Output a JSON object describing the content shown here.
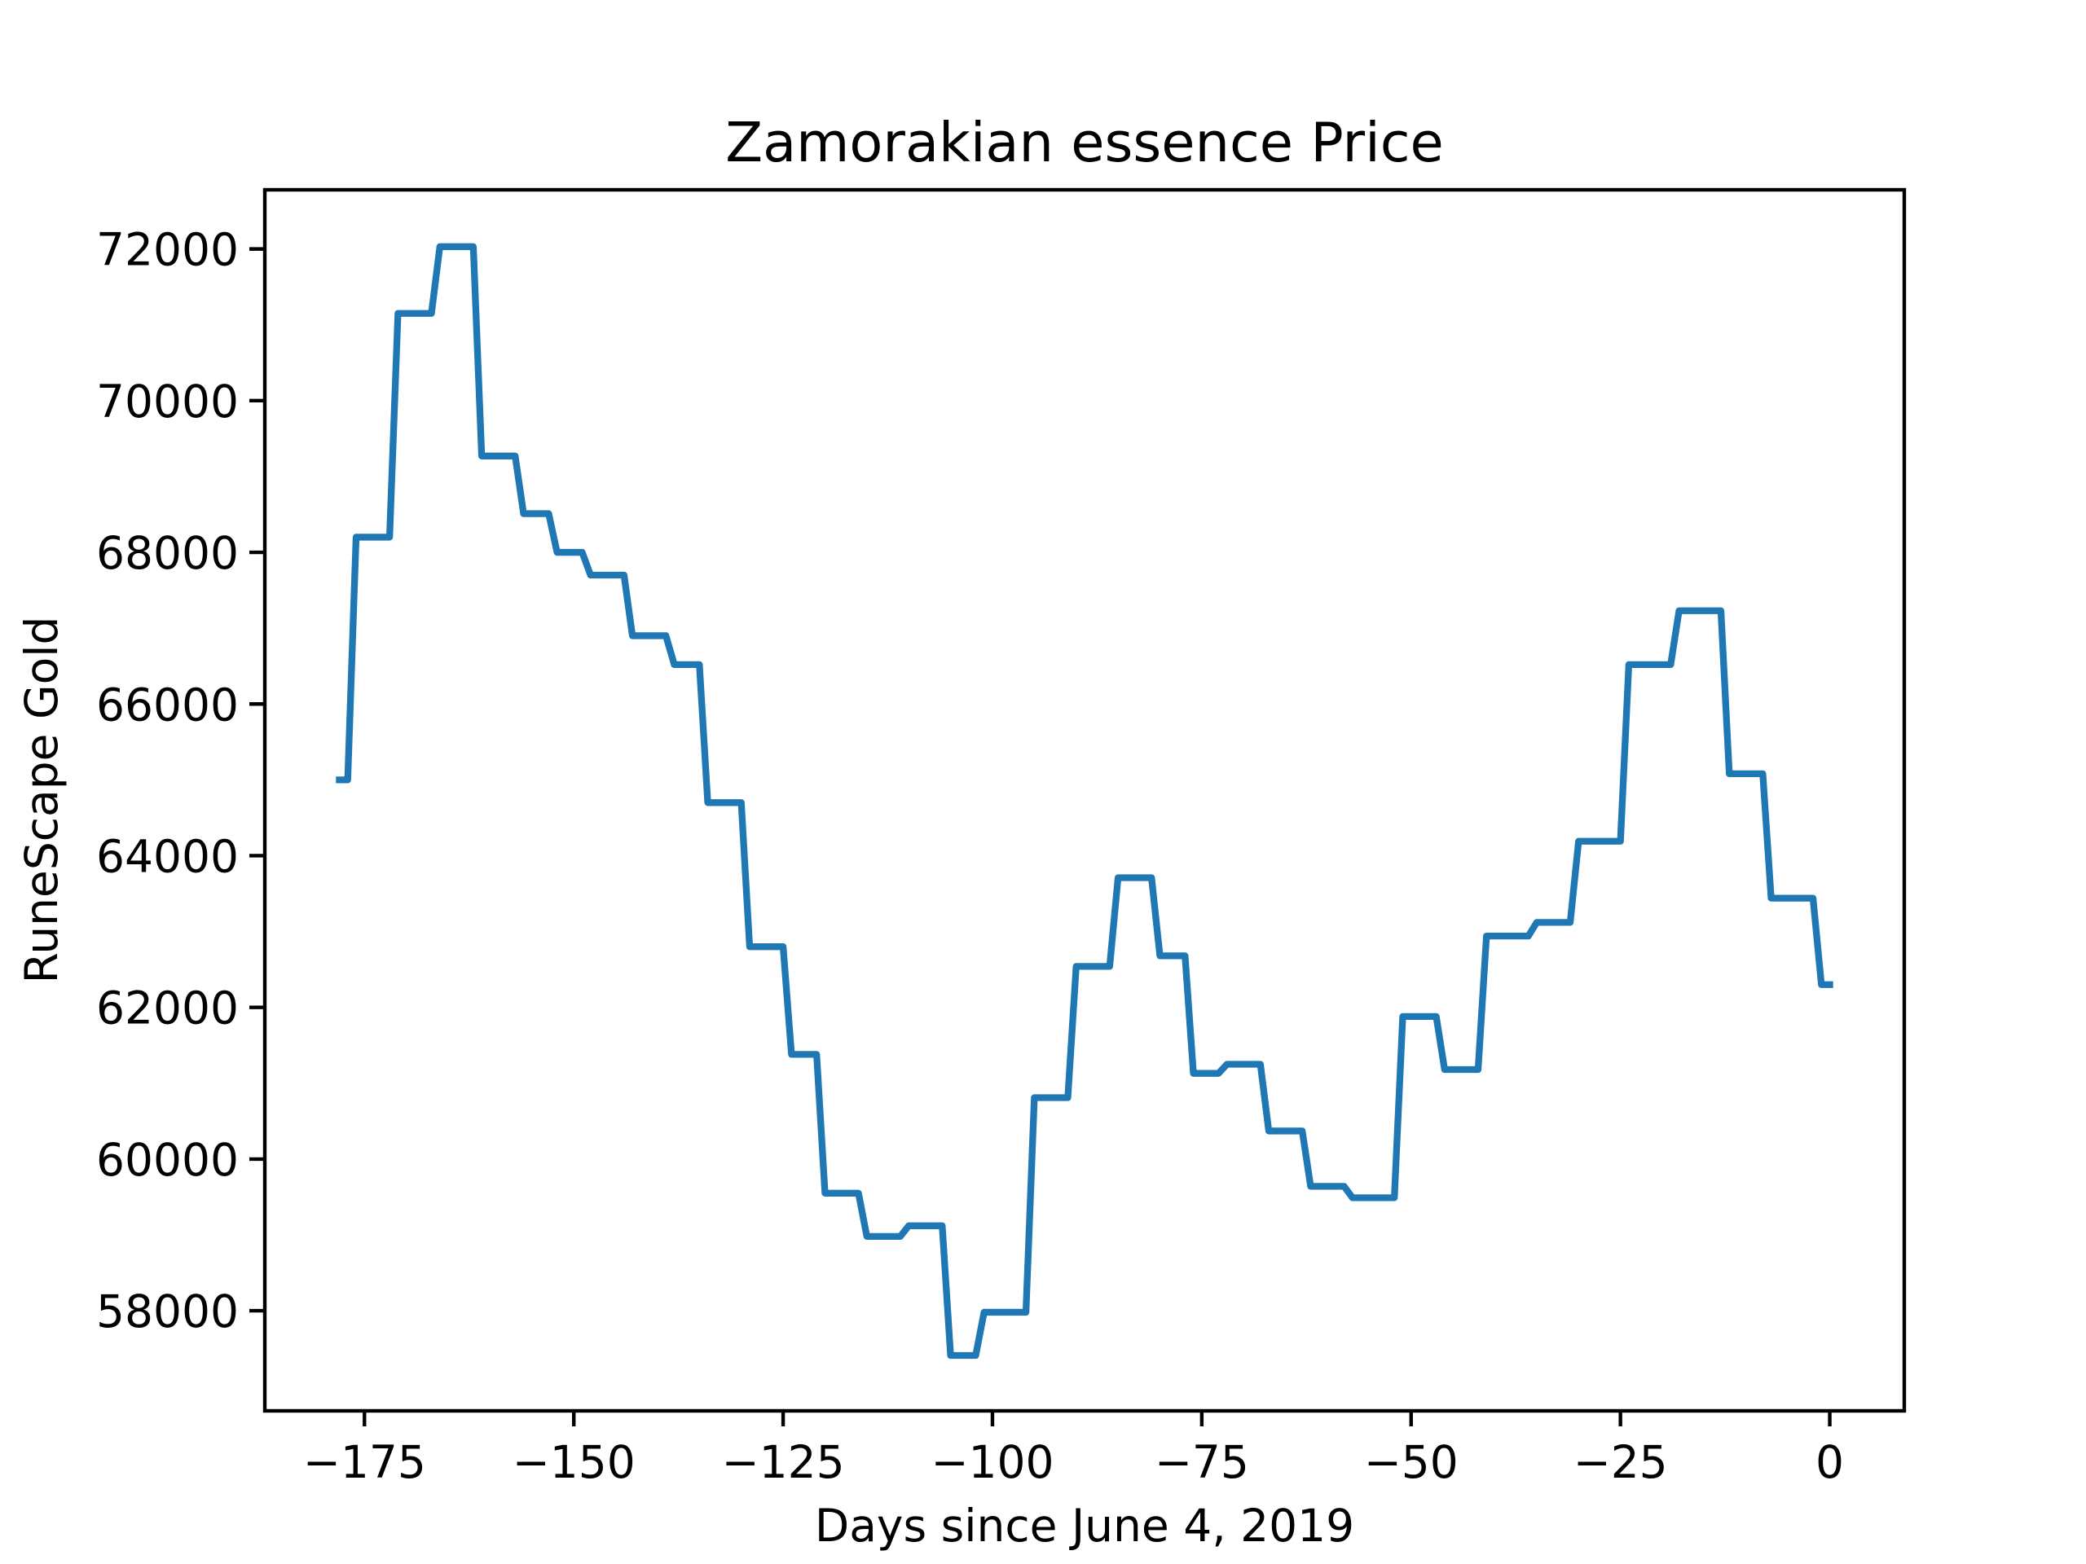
{
  "chart_data": {
    "type": "line",
    "title": "Zamorakian essence Price",
    "xlabel": "Days since June 4, 2019",
    "ylabel": "RuneScape Gold",
    "x": [
      -178,
      -177,
      -176,
      -172,
      -171,
      -167,
      -166,
      -162,
      -161,
      -157,
      -156,
      -153,
      -152,
      -149,
      -148,
      -144,
      -143,
      -139,
      -138,
      -135,
      -134,
      -130,
      -129,
      -125,
      -124,
      -121,
      -120,
      -116,
      -115,
      -111,
      -110,
      -106,
      -105,
      -102,
      -101,
      -96,
      -95,
      -91,
      -90,
      -86,
      -85,
      -81,
      -80,
      -77,
      -76,
      -73,
      -72,
      -68,
      -67,
      -63,
      -62,
      -58,
      -57,
      -52,
      -51,
      -47,
      -46,
      -42,
      -41,
      -36,
      -35,
      -31,
      -30,
      -25,
      -24,
      -19,
      -18,
      -13,
      -12,
      -8,
      -7,
      -2,
      -1,
      0
    ],
    "series": [
      {
        "name": "Zamorakian essence",
        "color": "#1f77b4",
        "values": [
          65000,
          65000,
          68200,
          68200,
          71150,
          71150,
          72030,
          72030,
          69270,
          69270,
          68510,
          68510,
          68000,
          68000,
          67700,
          67700,
          66900,
          66900,
          66520,
          66520,
          64700,
          64700,
          62800,
          62800,
          61380,
          61380,
          59550,
          59550,
          58980,
          58980,
          59120,
          59120,
          57410,
          57410,
          57980,
          57980,
          60810,
          60810,
          62540,
          62540,
          63710,
          63710,
          62680,
          62680,
          61130,
          61130,
          61250,
          61250,
          60370,
          60370,
          59640,
          59640,
          59490,
          59490,
          61880,
          61880,
          61180,
          61180,
          62940,
          62940,
          63120,
          63120,
          64190,
          64190,
          66520,
          66520,
          67230,
          67230,
          65080,
          65080,
          63440,
          63440,
          62300,
          62300
        ]
      }
    ],
    "xlim": [
      -186.9,
      8.9
    ],
    "ylim": [
      56680,
      72780
    ],
    "xticks": [
      {
        "value": -175,
        "label": "−175"
      },
      {
        "value": -150,
        "label": "−150"
      },
      {
        "value": -125,
        "label": "−125"
      },
      {
        "value": -100,
        "label": "−100"
      },
      {
        "value": -75,
        "label": "−75"
      },
      {
        "value": -50,
        "label": "−50"
      },
      {
        "value": -25,
        "label": "−25"
      },
      0
    ],
    "yticks": [
      58000,
      60000,
      62000,
      64000,
      66000,
      68000,
      70000,
      72000
    ]
  }
}
